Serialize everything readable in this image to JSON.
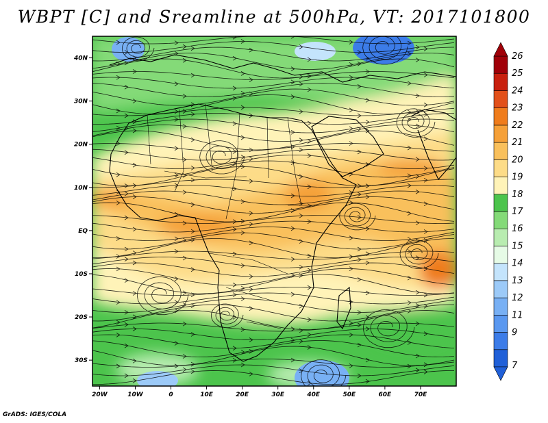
{
  "title": "WBPT [C] and Sreamline at 500hPa, VT: 2017101800",
  "footer": "GrADS: IGES/COLA",
  "map": {
    "lat_labels": [
      "40N",
      "30N",
      "20N",
      "10N",
      "EQ",
      "10S",
      "20S",
      "30S"
    ],
    "lon_labels": [
      "20W",
      "10W",
      "0",
      "10E",
      "20E",
      "30E",
      "40E",
      "50E",
      "60E",
      "70E"
    ],
    "lat_values": [
      40,
      30,
      20,
      10,
      0,
      -10,
      -20,
      -30
    ],
    "lon_values": [
      -20,
      -10,
      0,
      10,
      20,
      30,
      40,
      50,
      60,
      70
    ],
    "lon_range": [
      -22,
      80
    ],
    "lat_range": [
      -36,
      45
    ]
  },
  "colorbar": {
    "labels": [
      "7",
      "9",
      "11",
      "12",
      "13",
      "14",
      "15",
      "16",
      "17",
      "18",
      "19",
      "20",
      "21",
      "22",
      "23",
      "24",
      "25",
      "26"
    ],
    "colors": [
      "#2060d8",
      "#3c7ce8",
      "#5a98f0",
      "#78b0f4",
      "#9ccaf8",
      "#c4e4fc",
      "#e6fbe6",
      "#b8ecb0",
      "#84da78",
      "#4cc44c",
      "#fff3b8",
      "#fddc88",
      "#f9c05c",
      "#f5a038",
      "#ef7c1c",
      "#e2501a",
      "#c8200e",
      "#a00008"
    ]
  }
}
